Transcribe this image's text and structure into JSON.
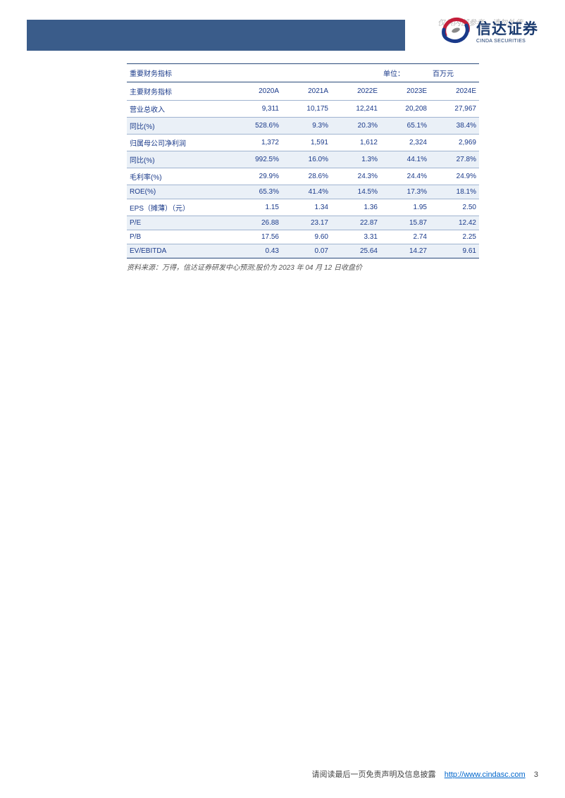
{
  "header": {
    "watermark": "仅供内部参考，请勿外传",
    "company_cn": "信达证券",
    "company_en": "CINDA SECURITIES",
    "logo_colors": {
      "red": "#c41e3a",
      "blue": "#1a3a8a",
      "grey": "#888888"
    },
    "bar_color": "#3a5c8a"
  },
  "table": {
    "title": "重要财务指标",
    "unit_label": "单位：",
    "unit_value": "百万元",
    "columns": [
      "主要财务指标",
      "2020A",
      "2021A",
      "2022E",
      "2023E",
      "2024E"
    ],
    "rows": [
      {
        "label": "营业总收入",
        "values": [
          "9,311",
          "10,175",
          "12,241",
          "20,208",
          "27,967"
        ],
        "alt": false
      },
      {
        "label": "同比(%)",
        "values": [
          "528.6%",
          "9.3%",
          "20.3%",
          "65.1%",
          "38.4%"
        ],
        "alt": true
      },
      {
        "label": "归属母公司净利润",
        "values": [
          "1,372",
          "1,591",
          "1,612",
          "2,324",
          "2,969"
        ],
        "alt": false
      },
      {
        "label": "同比(%)",
        "values": [
          "992.5%",
          "16.0%",
          "1.3%",
          "44.1%",
          "27.8%"
        ],
        "alt": true
      },
      {
        "label": "毛利率(%)",
        "values": [
          "29.9%",
          "28.6%",
          "24.3%",
          "24.4%",
          "24.9%"
        ],
        "alt": false
      },
      {
        "label": "ROE(%)",
        "values": [
          "65.3%",
          "41.4%",
          "14.5%",
          "17.3%",
          "18.1%"
        ],
        "alt": true
      },
      {
        "label": "EPS（摊薄）（元）",
        "values": [
          "1.15",
          "1.34",
          "1.36",
          "1.95",
          "2.50"
        ],
        "alt": false
      },
      {
        "label": "P/E",
        "values": [
          "26.88",
          "23.17",
          "22.87",
          "15.87",
          "12.42"
        ],
        "alt": true
      },
      {
        "label": "P/B",
        "values": [
          "17.56",
          "9.60",
          "3.31",
          "2.74",
          "2.25"
        ],
        "alt": false
      },
      {
        "label": "EV/EBITDA",
        "values": [
          "0.43",
          "0.07",
          "25.64",
          "14.27",
          "9.61"
        ],
        "alt": true
      }
    ],
    "col_widths": [
      "30%",
      "14%",
      "14%",
      "14%",
      "14%",
      "14%"
    ],
    "border_color": "#a0b4d0",
    "heavy_border_color": "#2a4a7a",
    "text_color": "#1a3a8a",
    "alt_bg": "#eaf0f7",
    "font_size": 10
  },
  "source_note": "资料来源：万得，信达证券研发中心预测;股价为 2023 年 04 月 12 日收盘价",
  "footer": {
    "text": "请阅读最后一页免责声明及信息披露",
    "url": "http://www.cindasc.com",
    "page_num": "3"
  }
}
